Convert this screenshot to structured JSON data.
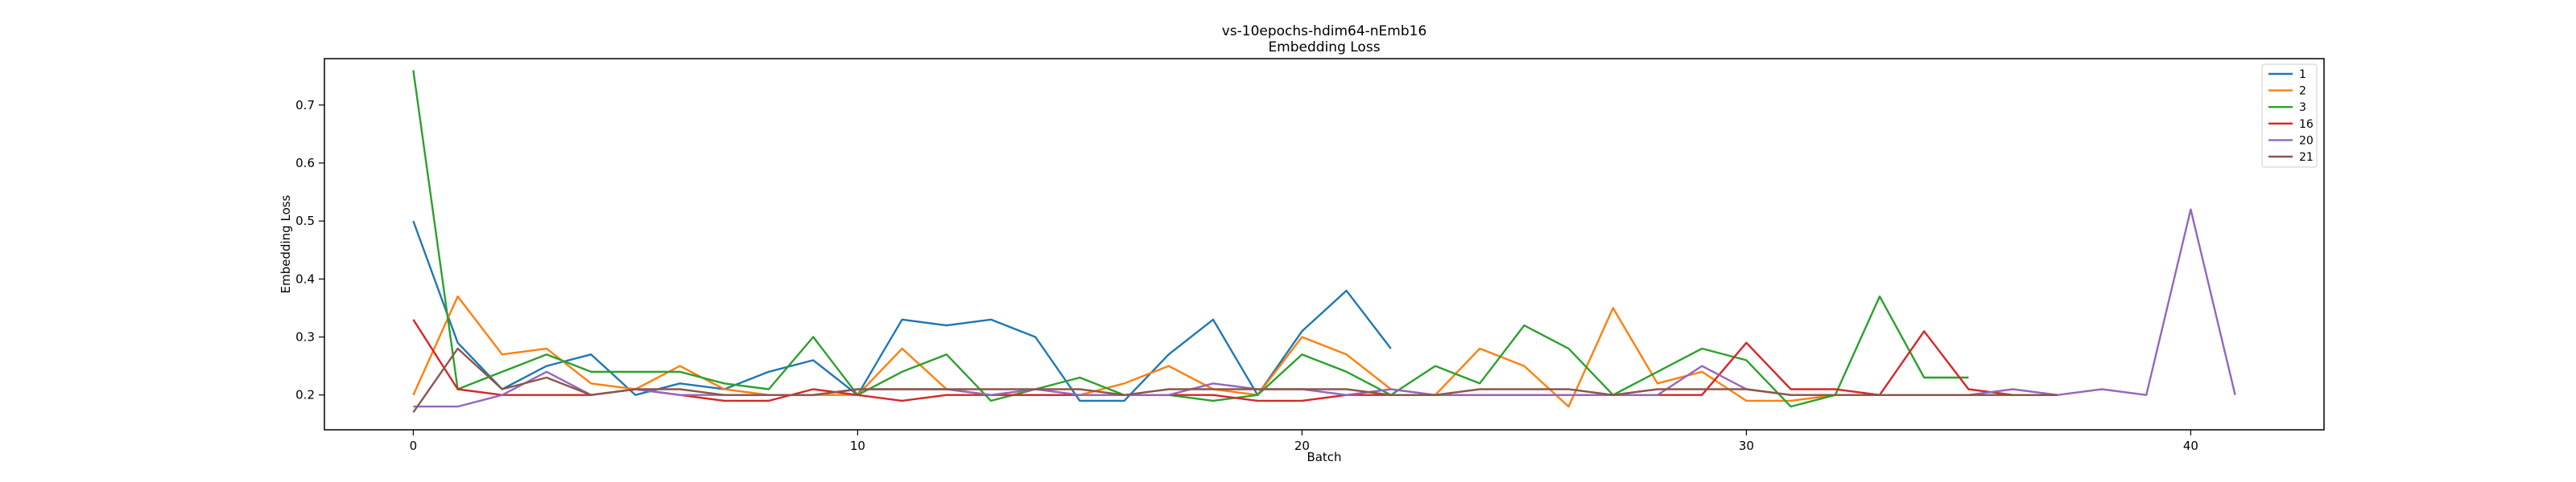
{
  "chart_data": {
    "type": "line",
    "title": "vs-10epochs-hdim64-nEmb16",
    "subtitle": "Embedding Loss",
    "xlabel": "Batch",
    "ylabel": "Embedding Loss",
    "xlim": [
      -2,
      43
    ],
    "ylim": [
      0.14,
      0.78
    ],
    "xticks": [
      0,
      10,
      20,
      30,
      40
    ],
    "yticks": [
      0.2,
      0.3,
      0.4,
      0.5,
      0.6,
      0.7
    ],
    "grid": false,
    "legend": "top-right",
    "series": [
      {
        "name": "1",
        "color": "#1f77b4",
        "x": [
          0,
          1,
          2,
          3,
          4,
          5,
          6,
          7,
          8,
          9,
          10,
          11,
          12,
          13,
          14,
          15,
          16,
          17,
          18,
          19,
          20,
          21,
          22
        ],
        "values": [
          0.5,
          0.29,
          0.21,
          0.25,
          0.27,
          0.2,
          0.22,
          0.21,
          0.24,
          0.26,
          0.2,
          0.33,
          0.32,
          0.33,
          0.3,
          0.19,
          0.19,
          0.27,
          0.33,
          0.2,
          0.31,
          0.38,
          0.28
        ]
      },
      {
        "name": "2",
        "color": "#ff7f0e",
        "x": [
          0,
          1,
          2,
          3,
          4,
          5,
          6,
          7,
          8,
          9,
          10,
          11,
          12,
          13,
          14,
          15,
          16,
          17,
          18,
          19,
          20,
          21,
          22,
          23,
          24,
          25,
          26,
          27,
          28,
          29,
          30,
          31,
          32,
          33,
          34,
          35,
          36,
          37
        ],
        "values": [
          0.2,
          0.37,
          0.27,
          0.28,
          0.22,
          0.21,
          0.25,
          0.21,
          0.2,
          0.2,
          0.2,
          0.28,
          0.21,
          0.2,
          0.2,
          0.2,
          0.22,
          0.25,
          0.21,
          0.2,
          0.3,
          0.27,
          0.21,
          0.2,
          0.28,
          0.25,
          0.18,
          0.35,
          0.22,
          0.24,
          0.19,
          0.19,
          0.2,
          0.2,
          0.2,
          0.2,
          0.2,
          0.2
        ]
      },
      {
        "name": "3",
        "color": "#2ca02c",
        "x": [
          0,
          1,
          2,
          3,
          4,
          5,
          6,
          7,
          8,
          9,
          10,
          11,
          12,
          13,
          14,
          15,
          16,
          17,
          18,
          19,
          20,
          21,
          22,
          23,
          24,
          25,
          26,
          27,
          28,
          29,
          30,
          31,
          32,
          33,
          34,
          35
        ],
        "values": [
          0.76,
          0.21,
          0.24,
          0.27,
          0.24,
          0.24,
          0.24,
          0.22,
          0.21,
          0.3,
          0.2,
          0.24,
          0.27,
          0.19,
          0.21,
          0.23,
          0.2,
          0.2,
          0.19,
          0.2,
          0.27,
          0.24,
          0.2,
          0.25,
          0.22,
          0.32,
          0.28,
          0.2,
          0.24,
          0.28,
          0.26,
          0.18,
          0.2,
          0.37,
          0.23,
          0.23
        ]
      },
      {
        "name": "16",
        "color": "#d62728",
        "x": [
          0,
          1,
          2,
          3,
          4,
          5,
          6,
          7,
          8,
          9,
          10,
          11,
          12,
          13,
          14,
          15,
          16,
          17,
          18,
          19,
          20,
          21,
          22,
          23,
          24,
          25,
          26,
          27,
          28,
          29,
          30,
          31,
          32,
          33,
          34,
          35,
          36,
          37
        ],
        "values": [
          0.33,
          0.21,
          0.2,
          0.2,
          0.2,
          0.21,
          0.2,
          0.19,
          0.19,
          0.21,
          0.2,
          0.19,
          0.2,
          0.2,
          0.2,
          0.2,
          0.2,
          0.2,
          0.2,
          0.19,
          0.19,
          0.2,
          0.2,
          0.2,
          0.2,
          0.2,
          0.2,
          0.2,
          0.2,
          0.2,
          0.29,
          0.21,
          0.21,
          0.2,
          0.31,
          0.21,
          0.2,
          0.2
        ]
      },
      {
        "name": "20",
        "color": "#9467bd",
        "x": [
          0,
          1,
          2,
          3,
          4,
          5,
          6,
          7,
          8,
          9,
          10,
          11,
          12,
          13,
          14,
          15,
          16,
          17,
          18,
          19,
          20,
          21,
          22,
          23,
          24,
          25,
          26,
          27,
          28,
          29,
          30,
          31,
          32,
          33,
          34,
          35,
          36,
          37,
          38,
          39,
          40,
          41
        ],
        "values": [
          0.18,
          0.18,
          0.2,
          0.24,
          0.2,
          0.21,
          0.2,
          0.2,
          0.2,
          0.2,
          0.21,
          0.21,
          0.21,
          0.2,
          0.21,
          0.2,
          0.2,
          0.2,
          0.22,
          0.21,
          0.21,
          0.2,
          0.21,
          0.2,
          0.2,
          0.2,
          0.2,
          0.2,
          0.2,
          0.25,
          0.21,
          0.2,
          0.2,
          0.2,
          0.2,
          0.2,
          0.21,
          0.2,
          0.21,
          0.2,
          0.52,
          0.2
        ]
      },
      {
        "name": "21",
        "color": "#8c564b",
        "x": [
          0,
          1,
          2,
          3,
          4,
          5,
          6,
          7,
          8,
          9,
          10,
          11,
          12,
          13,
          14,
          15,
          16,
          17,
          18,
          19,
          20,
          21,
          22,
          23,
          24,
          25,
          26,
          27,
          28,
          29,
          30,
          31,
          32,
          33,
          34,
          35,
          36,
          37
        ],
        "values": [
          0.17,
          0.28,
          0.21,
          0.23,
          0.2,
          0.21,
          0.21,
          0.2,
          0.2,
          0.2,
          0.21,
          0.21,
          0.21,
          0.21,
          0.21,
          0.21,
          0.2,
          0.21,
          0.21,
          0.21,
          0.21,
          0.21,
          0.2,
          0.2,
          0.21,
          0.21,
          0.21,
          0.2,
          0.21,
          0.21,
          0.21,
          0.2,
          0.2,
          0.2,
          0.2,
          0.2,
          0.2,
          0.2
        ]
      }
    ]
  }
}
